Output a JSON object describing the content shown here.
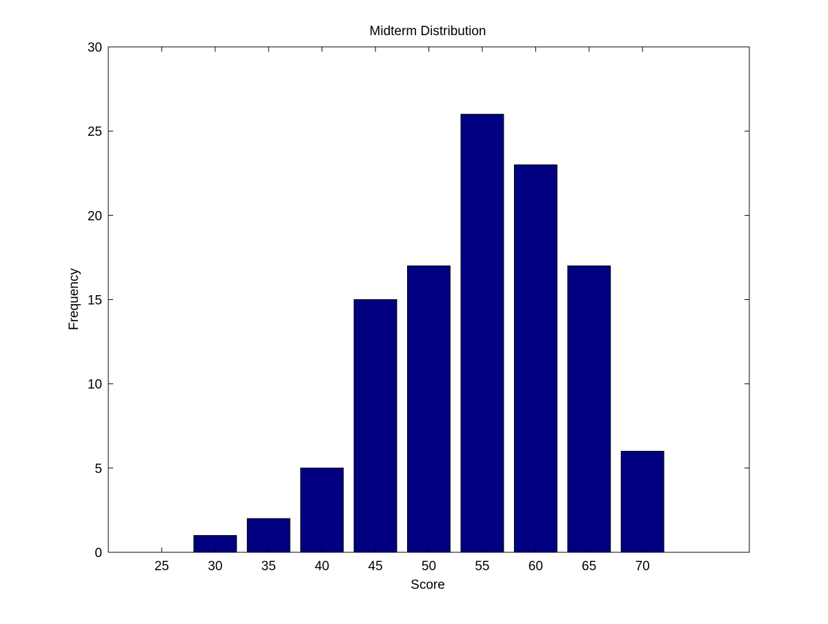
{
  "chart_data": {
    "type": "bar",
    "title": "Midterm Distribution",
    "xlabel": "Score",
    "ylabel": "Frequency",
    "categories": [
      25,
      30,
      35,
      40,
      45,
      50,
      55,
      60,
      65,
      70
    ],
    "values": [
      0,
      1,
      2,
      5,
      15,
      17,
      26,
      23,
      17,
      6
    ],
    "xlim": [
      20,
      80
    ],
    "ylim": [
      0,
      30
    ],
    "xticks": [
      25,
      30,
      35,
      40,
      45,
      50,
      55,
      60,
      65,
      70
    ],
    "yticks": [
      0,
      5,
      10,
      15,
      20,
      25,
      30
    ],
    "bar_color": "#000080",
    "grid": false,
    "legend": "none"
  }
}
